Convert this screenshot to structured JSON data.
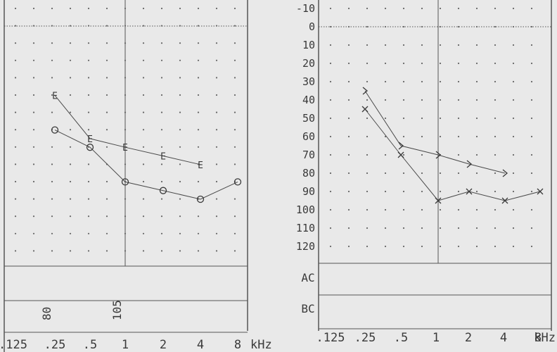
{
  "chart_data": [
    {
      "type": "line",
      "panel": "left",
      "x_ticks": [
        ".125",
        ".25",
        ".5",
        "1",
        "2",
        "4",
        "8"
      ],
      "x_unit": "kHz",
      "ylim": [
        -10,
        130
      ],
      "series": [
        {
          "name": "",
          "marker": "E",
          "points": [
            {
              "x": ".25",
              "y": 40
            },
            {
              "x": ".5",
              "y": 65
            },
            {
              "x": "1",
              "y": 70
            },
            {
              "x": "2",
              "y": 75
            },
            {
              "x": "4",
              "y": 80
            }
          ]
        },
        {
          "name": "",
          "marker": "O",
          "points": [
            {
              "x": ".25",
              "y": 60
            },
            {
              "x": ".5",
              "y": 70
            },
            {
              "x": "1",
              "y": 90
            },
            {
              "x": "2",
              "y": 95
            },
            {
              "x": "4",
              "y": 100
            },
            {
              "x": "8",
              "y": 90
            }
          ]
        }
      ],
      "bottom_values": [
        {
          "x": ".25",
          "text": "80"
        },
        {
          "x": "1",
          "text": "105"
        }
      ]
    },
    {
      "type": "line",
      "panel": "right",
      "x_ticks": [
        ".125",
        ".25",
        ".5",
        "1",
        "2",
        "4",
        "8"
      ],
      "x_unit": "kHz",
      "y_ticks": [
        "-10",
        "0",
        "10",
        "20",
        "30",
        "40",
        "50",
        "60",
        "70",
        "80",
        "90",
        "100",
        "110",
        "120"
      ],
      "ylim": [
        -10,
        130
      ],
      "row_labels": [
        "AC",
        "BC"
      ],
      "series": [
        {
          "name": "",
          "marker": ">",
          "points": [
            {
              "x": ".25",
              "y": 35
            },
            {
              "x": ".5",
              "y": 65
            },
            {
              "x": "1",
              "y": 70
            },
            {
              "x": "2",
              "y": 75
            },
            {
              "x": "4",
              "y": 80
            }
          ]
        },
        {
          "name": "",
          "marker": "X",
          "points": [
            {
              "x": ".25",
              "y": 45
            },
            {
              "x": ".5",
              "y": 70
            },
            {
              "x": "1",
              "y": 95
            },
            {
              "x": "2",
              "y": 90
            },
            {
              "x": "4",
              "y": 95
            },
            {
              "x": "8",
              "y": 90
            }
          ]
        }
      ]
    }
  ]
}
